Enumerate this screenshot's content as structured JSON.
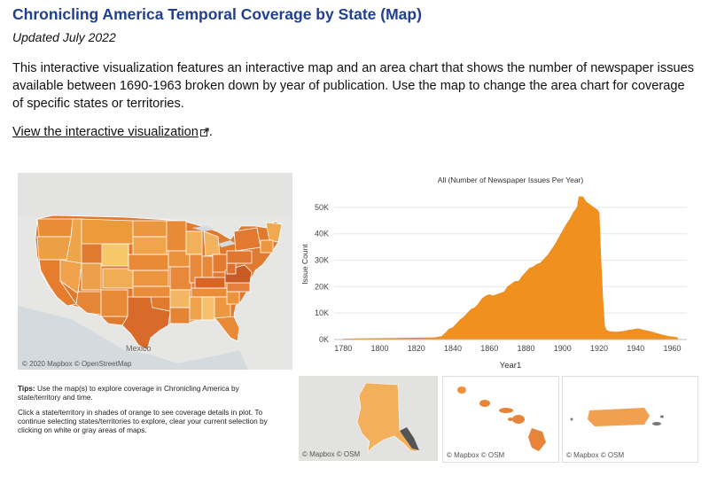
{
  "header": {
    "title": "Chronicling America Temporal Coverage by State (Map)",
    "updated": "Updated July 2022",
    "description": "This interactive visualization features an interactive map and an area chart that shows the number of newspaper issues available between 1690-1963 broken down by year of publication. Use the map to change the area chart for coverage of specific states or territories.",
    "link_text": "View the interactive visualization",
    "link_suffix": "."
  },
  "map": {
    "attribution": "© 2020 Mapbox © OpenStreetMap",
    "mexico_label": "Mexico"
  },
  "inset_maps": [
    {
      "name": "Alaska",
      "attribution": "© Mapbox © OSM"
    },
    {
      "name": "Hawaii",
      "attribution": "© Mapbox © OSM"
    },
    {
      "name": "Puerto Rico",
      "attribution": "© Mapbox © OSM"
    }
  ],
  "tips": {
    "label": "Tips:",
    "line1": "Use the map(s) to explore coverage in Chronicling America by state/territory and time.",
    "line2": "Click a state/territory in shades of orange to see coverage details in plot.  To continue selecting states/territories to explore, clear your current selection by clicking on white or gray areas of maps."
  },
  "colors": {
    "accent": "#f0901e",
    "title": "#1f3f8f"
  },
  "chart_data": {
    "type": "area",
    "title": "All (Number of Newspaper Issues Per Year)",
    "xlabel": "Year1",
    "ylabel": "Issue Count",
    "xlim": [
      1775,
      1968
    ],
    "ylim": [
      0,
      57000
    ],
    "x_ticks": [
      1780,
      1800,
      1820,
      1840,
      1860,
      1880,
      1900,
      1920,
      1940,
      1960
    ],
    "y_ticks": [
      0,
      10000,
      20000,
      30000,
      40000,
      50000
    ],
    "y_tick_labels": [
      "0K",
      "10K",
      "20K",
      "30K",
      "40K",
      "50K"
    ],
    "x": [
      1780,
      1790,
      1800,
      1810,
      1820,
      1830,
      1834,
      1836,
      1838,
      1840,
      1842,
      1844,
      1846,
      1848,
      1850,
      1852,
      1854,
      1856,
      1858,
      1860,
      1862,
      1864,
      1866,
      1868,
      1870,
      1872,
      1874,
      1876,
      1878,
      1880,
      1882,
      1884,
      1886,
      1888,
      1890,
      1892,
      1894,
      1896,
      1898,
      1900,
      1902,
      1904,
      1906,
      1908,
      1909,
      1911,
      1913,
      1915,
      1917,
      1919,
      1920,
      1921,
      1922,
      1923,
      1924,
      1926,
      1928,
      1930,
      1932,
      1934,
      1936,
      1938,
      1940,
      1942,
      1944,
      1946,
      1948,
      1950,
      1952,
      1954,
      1956,
      1958,
      1960,
      1962,
      1963
    ],
    "values": [
      200,
      300,
      400,
      500,
      600,
      700,
      1200,
      2500,
      4000,
      4500,
      6000,
      7500,
      8500,
      10000,
      11500,
      12000,
      13500,
      15500,
      16500,
      17000,
      16500,
      17000,
      17500,
      18000,
      20000,
      21000,
      22000,
      22000,
      24000,
      25500,
      27000,
      27500,
      28500,
      29000,
      30500,
      32000,
      34000,
      36000,
      38500,
      41000,
      43500,
      45500,
      48000,
      50000,
      54000,
      54000,
      52000,
      51000,
      50000,
      49000,
      48000,
      30000,
      16000,
      5000,
      3500,
      3000,
      2800,
      2800,
      3000,
      3200,
      3500,
      3700,
      4000,
      4000,
      3600,
      3300,
      3000,
      2600,
      2200,
      1800,
      1500,
      1200,
      1000,
      800,
      600
    ]
  }
}
